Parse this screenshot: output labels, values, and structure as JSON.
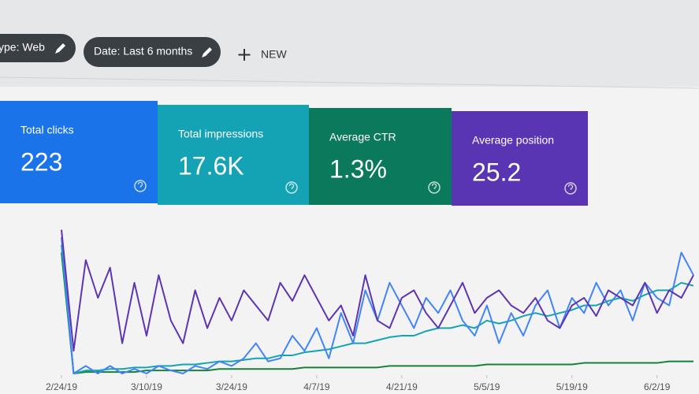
{
  "toolbar": {
    "filters": [
      "ype: Web",
      "Date: Last 6 months"
    ],
    "new_button": "NEW"
  },
  "cards": [
    {
      "label": "Total clicks",
      "value": "223",
      "color": "#1a73e8"
    },
    {
      "label": "Total impressions",
      "value": "17.6K",
      "color": "#13a3b4"
    },
    {
      "label": "Average CTR",
      "value": "1.3%",
      "color": "#0b7a5c"
    },
    {
      "label": "Average position",
      "value": "25.2",
      "color": "#5935b3"
    }
  ],
  "chart_data": {
    "type": "line",
    "x": [
      0,
      1,
      2,
      3,
      4,
      5,
      6,
      7,
      8,
      9,
      10,
      11,
      12,
      13,
      14,
      15,
      16,
      17,
      18,
      19,
      20,
      21,
      22,
      23,
      24,
      25,
      26,
      27,
      28,
      29,
      30,
      31,
      32,
      33,
      34,
      35,
      36,
      37,
      38,
      39,
      40,
      41,
      42,
      43,
      44,
      45,
      46,
      47,
      48,
      49,
      50,
      51,
      52
    ],
    "xlim": [
      0,
      52
    ],
    "xticks": [
      {
        "value": 0,
        "label": "2/24/19"
      },
      {
        "value": 7,
        "label": "3/10/19"
      },
      {
        "value": 14,
        "label": "3/24/19"
      },
      {
        "value": 21,
        "label": "4/7/19"
      },
      {
        "value": 28,
        "label": "4/21/19"
      },
      {
        "value": 35,
        "label": "5/5/19"
      },
      {
        "value": 42,
        "label": "5/19/19"
      },
      {
        "value": 49,
        "label": "6/2/19"
      }
    ],
    "ylim": [
      0,
      100
    ],
    "series": [
      {
        "name": "Average CTR",
        "color": "#188038",
        "values": [
          80,
          0,
          1,
          1,
          1,
          1,
          1,
          2,
          2,
          2,
          2,
          2,
          2,
          3,
          3,
          3,
          3,
          3,
          3,
          3,
          4,
          4,
          4,
          4,
          4,
          4,
          4,
          5,
          5,
          5,
          5,
          5,
          5,
          5,
          5,
          6,
          6,
          6,
          6,
          6,
          6,
          6,
          6,
          7,
          7,
          7,
          7,
          7,
          7,
          7,
          8,
          8,
          8
        ]
      },
      {
        "name": "Total impressions",
        "color": "#12a4b4",
        "values": [
          85,
          0,
          2,
          2,
          3,
          3,
          4,
          4,
          5,
          5,
          6,
          6,
          7,
          8,
          8,
          9,
          10,
          10,
          12,
          12,
          14,
          15,
          16,
          18,
          20,
          20,
          22,
          24,
          25,
          25,
          28,
          30,
          30,
          32,
          30,
          35,
          33,
          35,
          38,
          40,
          38,
          40,
          42,
          45,
          45,
          48,
          50,
          48,
          52,
          55,
          55,
          60,
          58
        ]
      },
      {
        "name": "Total clicks",
        "color": "#4285f4",
        "values": [
          90,
          0,
          5,
          0,
          5,
          0,
          3,
          0,
          5,
          2,
          0,
          5,
          3,
          8,
          5,
          10,
          20,
          8,
          10,
          25,
          15,
          30,
          10,
          40,
          20,
          55,
          35,
          60,
          45,
          30,
          50,
          40,
          55,
          35,
          25,
          45,
          20,
          40,
          25,
          45,
          55,
          30,
          50,
          40,
          60,
          45,
          55,
          35,
          60,
          50,
          45,
          80,
          65
        ]
      },
      {
        "name": "Average position",
        "color": "#5e35b1",
        "values": [
          95,
          15,
          75,
          50,
          70,
          20,
          60,
          25,
          65,
          35,
          20,
          55,
          30,
          50,
          35,
          55,
          45,
          35,
          60,
          48,
          65,
          50,
          35,
          45,
          25,
          65,
          35,
          30,
          50,
          55,
          40,
          30,
          45,
          60,
          40,
          50,
          55,
          45,
          40,
          50,
          35,
          30,
          45,
          50,
          38,
          55,
          50,
          45,
          60,
          40,
          55,
          50,
          65
        ]
      }
    ]
  }
}
